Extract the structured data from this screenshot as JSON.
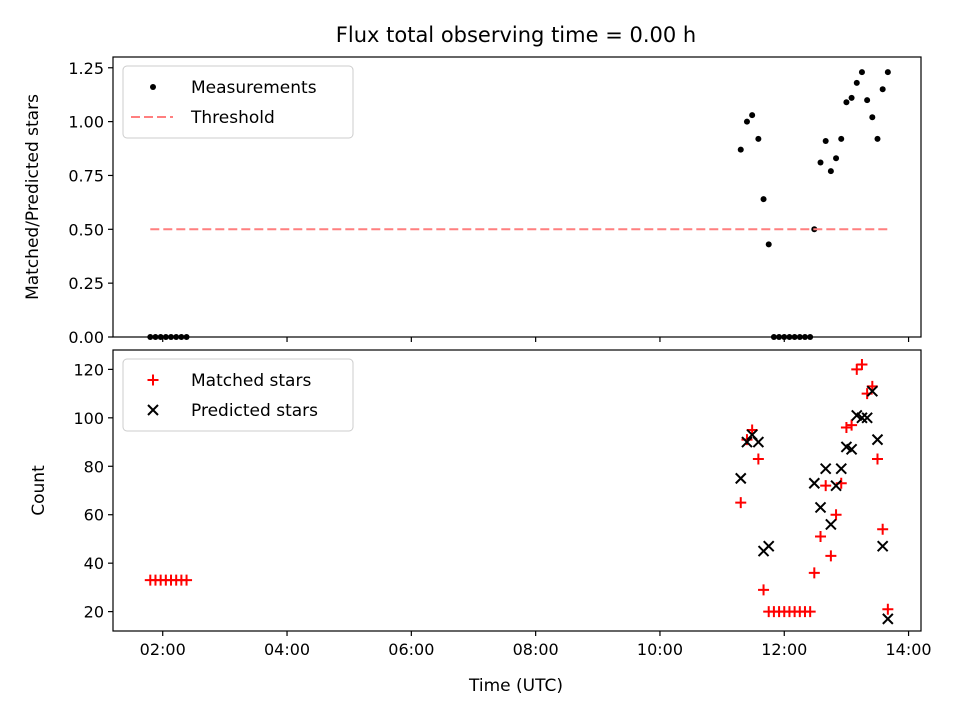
{
  "figure": {
    "title": "Flux total observing time = 0.00 h",
    "xlabel": "Time (UTC)"
  },
  "chart_data": [
    {
      "type": "scatter",
      "ylabel": "Matched/Predicted stars",
      "xlim": [
        "01:12",
        "14:12"
      ],
      "ylim": [
        0,
        1.3
      ],
      "x_ticks": [
        "02:00",
        "04:00",
        "06:00",
        "08:00",
        "10:00",
        "12:00",
        "14:00"
      ],
      "y_ticks": [
        "0.00",
        "0.25",
        "0.50",
        "0.75",
        "1.00",
        "1.25"
      ],
      "legend_position": "top-left",
      "grid": false,
      "series": [
        {
          "name": "Measurements",
          "marker": "dot",
          "color": "#000000",
          "points": [
            [
              "01:48",
              0
            ],
            [
              "01:53",
              0
            ],
            [
              "01:58",
              0
            ],
            [
              "02:03",
              0
            ],
            [
              "02:08",
              0
            ],
            [
              "02:13",
              0
            ],
            [
              "02:18",
              0
            ],
            [
              "02:23",
              0
            ],
            [
              "11:18",
              0.87
            ],
            [
              "11:24",
              1.0
            ],
            [
              "11:29",
              1.03
            ],
            [
              "11:35",
              0.92
            ],
            [
              "11:40",
              0.64
            ],
            [
              "11:45",
              0.43
            ],
            [
              "11:50",
              0
            ],
            [
              "11:55",
              0
            ],
            [
              "12:00",
              0
            ],
            [
              "12:05",
              0
            ],
            [
              "12:10",
              0
            ],
            [
              "12:15",
              0
            ],
            [
              "12:20",
              0
            ],
            [
              "12:25",
              0
            ],
            [
              "12:29",
              0.5
            ],
            [
              "12:35",
              0.81
            ],
            [
              "12:40",
              0.91
            ],
            [
              "12:45",
              0.77
            ],
            [
              "12:50",
              0.83
            ],
            [
              "12:55",
              0.92
            ],
            [
              "13:00",
              1.09
            ],
            [
              "13:05",
              1.11
            ],
            [
              "13:10",
              1.18
            ],
            [
              "13:15",
              1.23
            ],
            [
              "13:20",
              1.1
            ],
            [
              "13:25",
              1.02
            ],
            [
              "13:30",
              0.92
            ],
            [
              "13:35",
              1.15
            ],
            [
              "13:40",
              1.23
            ]
          ]
        },
        {
          "name": "Threshold",
          "marker": "dashed-line",
          "color": "#ff7f7f",
          "points": [
            [
              "01:48",
              0.5
            ],
            [
              "13:40",
              0.5
            ]
          ]
        }
      ]
    },
    {
      "type": "scatter",
      "ylabel": "Count",
      "xlim": [
        "01:12",
        "14:12"
      ],
      "ylim": [
        12,
        128
      ],
      "x_ticks": [
        "02:00",
        "04:00",
        "06:00",
        "08:00",
        "10:00",
        "12:00",
        "14:00"
      ],
      "y_ticks": [
        "20",
        "40",
        "60",
        "80",
        "100",
        "120"
      ],
      "legend_position": "top-left",
      "grid": false,
      "series": [
        {
          "name": "Matched stars",
          "marker": "plus",
          "color": "#ff0000",
          "points": [
            [
              "01:48",
              33
            ],
            [
              "01:53",
              33
            ],
            [
              "01:58",
              33
            ],
            [
              "02:03",
              33
            ],
            [
              "02:08",
              33
            ],
            [
              "02:13",
              33
            ],
            [
              "02:18",
              33
            ],
            [
              "02:23",
              33
            ],
            [
              "11:18",
              65
            ],
            [
              "11:24",
              91
            ],
            [
              "11:29",
              95
            ],
            [
              "11:35",
              83
            ],
            [
              "11:40",
              29
            ],
            [
              "11:45",
              20
            ],
            [
              "11:50",
              20
            ],
            [
              "11:55",
              20
            ],
            [
              "12:00",
              20
            ],
            [
              "12:05",
              20
            ],
            [
              "12:10",
              20
            ],
            [
              "12:15",
              20
            ],
            [
              "12:20",
              20
            ],
            [
              "12:25",
              20
            ],
            [
              "12:29",
              36
            ],
            [
              "12:35",
              51
            ],
            [
              "12:40",
              72
            ],
            [
              "12:45",
              43
            ],
            [
              "12:50",
              60
            ],
            [
              "12:55",
              73
            ],
            [
              "13:00",
              96
            ],
            [
              "13:05",
              97
            ],
            [
              "13:10",
              120
            ],
            [
              "13:15",
              122
            ],
            [
              "13:20",
              110
            ],
            [
              "13:25",
              113
            ],
            [
              "13:30",
              83
            ],
            [
              "13:35",
              54
            ],
            [
              "13:40",
              21
            ]
          ]
        },
        {
          "name": "Predicted stars",
          "marker": "x",
          "color": "#000000",
          "points": [
            [
              "11:18",
              75
            ],
            [
              "11:24",
              90
            ],
            [
              "11:29",
              93
            ],
            [
              "11:35",
              90
            ],
            [
              "11:40",
              45
            ],
            [
              "11:45",
              47
            ],
            [
              "12:29",
              73
            ],
            [
              "12:35",
              63
            ],
            [
              "12:40",
              79
            ],
            [
              "12:45",
              56
            ],
            [
              "12:50",
              72
            ],
            [
              "12:55",
              79
            ],
            [
              "13:00",
              88
            ],
            [
              "13:05",
              87
            ],
            [
              "13:10",
              101
            ],
            [
              "13:15",
              100
            ],
            [
              "13:20",
              100
            ],
            [
              "13:25",
              111
            ],
            [
              "13:30",
              91
            ],
            [
              "13:35",
              47
            ],
            [
              "13:40",
              17
            ]
          ]
        }
      ]
    }
  ]
}
